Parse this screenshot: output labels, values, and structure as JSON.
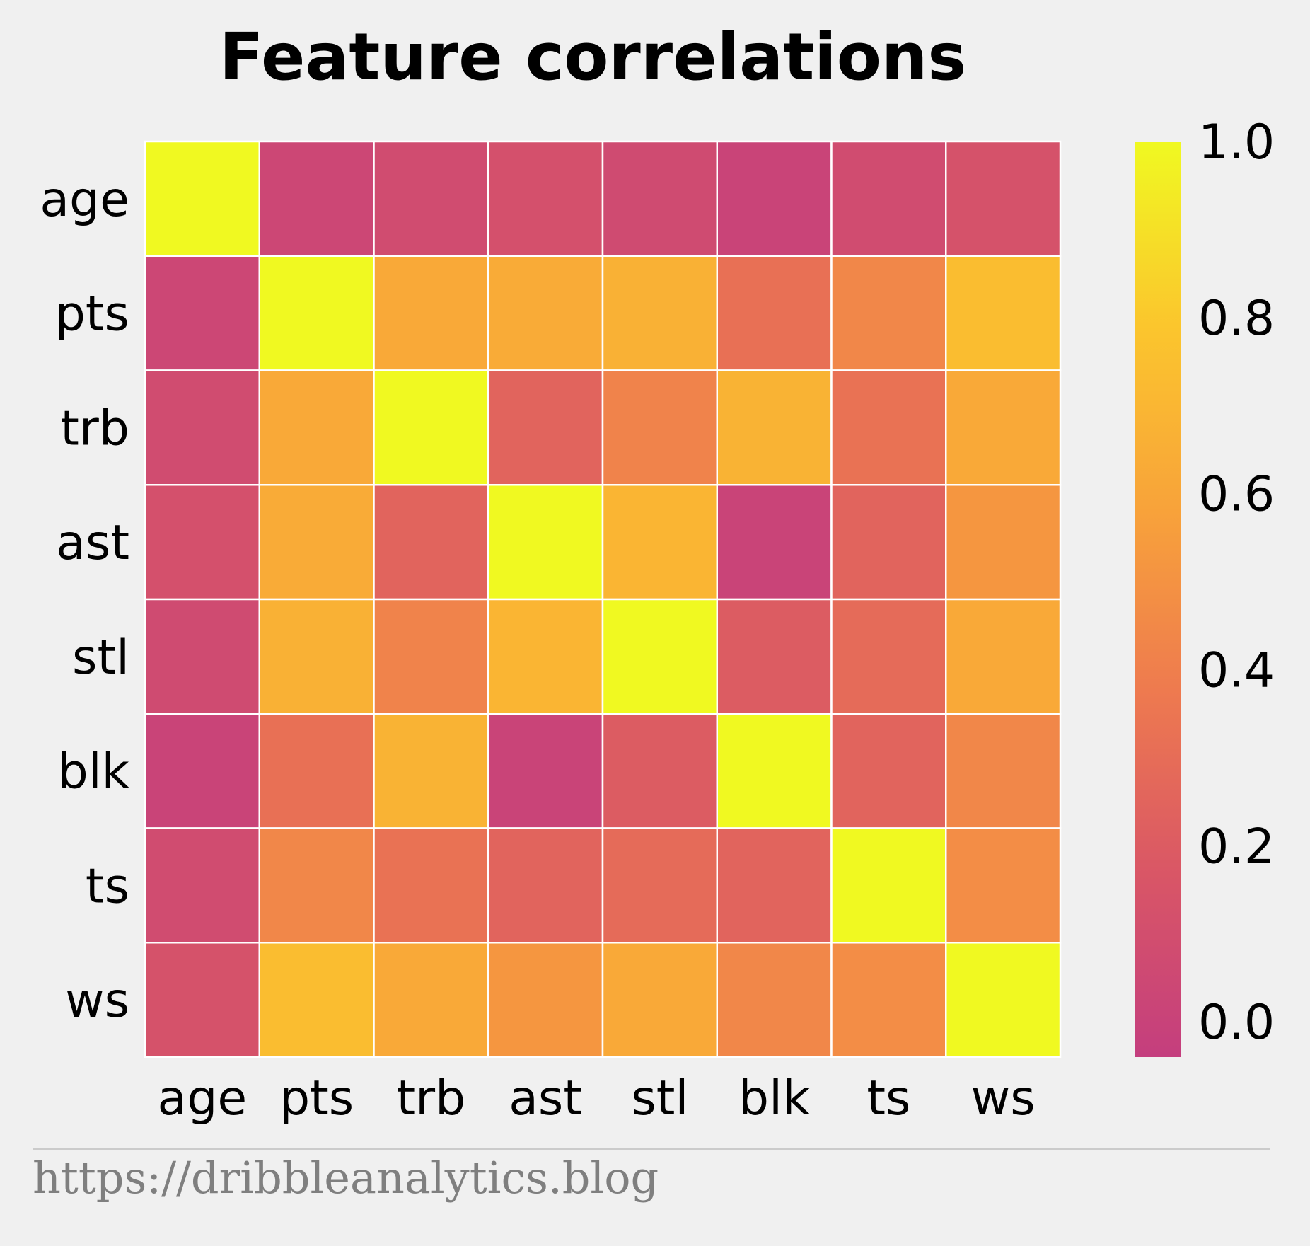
{
  "chart_data": {
    "type": "heatmap",
    "title": "Feature correlations",
    "x_labels": [
      "age",
      "pts",
      "trb",
      "ast",
      "stl",
      "blk",
      "ts",
      "ws"
    ],
    "y_labels": [
      "age",
      "pts",
      "trb",
      "ast",
      "stl",
      "blk",
      "ts",
      "ws"
    ],
    "values": [
      [
        1.0,
        0.04,
        0.08,
        0.12,
        0.07,
        0.01,
        0.08,
        0.13
      ],
      [
        0.04,
        1.0,
        0.62,
        0.63,
        0.67,
        0.32,
        0.44,
        0.74
      ],
      [
        0.08,
        0.62,
        1.0,
        0.25,
        0.42,
        0.68,
        0.33,
        0.62
      ],
      [
        0.12,
        0.63,
        0.25,
        1.0,
        0.69,
        0.01,
        0.25,
        0.52
      ],
      [
        0.07,
        0.67,
        0.42,
        0.69,
        1.0,
        0.2,
        0.29,
        0.62
      ],
      [
        0.01,
        0.32,
        0.68,
        0.01,
        0.2,
        1.0,
        0.25,
        0.44
      ],
      [
        0.08,
        0.44,
        0.33,
        0.25,
        0.29,
        0.25,
        1.0,
        0.47
      ],
      [
        0.13,
        0.74,
        0.62,
        0.52,
        0.62,
        0.44,
        0.47,
        1.0
      ]
    ],
    "colorbar": {
      "vmin": -0.04,
      "vmax": 1.0,
      "ticks": [
        0.0,
        0.2,
        0.4,
        0.6,
        0.8,
        1.0
      ],
      "tick_labels": [
        "0.0",
        "0.2",
        "0.4",
        "0.6",
        "0.8",
        "1.0"
      ],
      "colormap": "plasma-upper",
      "color_stops": [
        "#c43e7e",
        "#d95666",
        "#ee7a4f",
        "#f8a33a",
        "#fbc62d",
        "#f0f921"
      ]
    },
    "grid_line_color": "#ffffff"
  },
  "footer": {
    "text": "https://dribbleanalytics.blog"
  }
}
